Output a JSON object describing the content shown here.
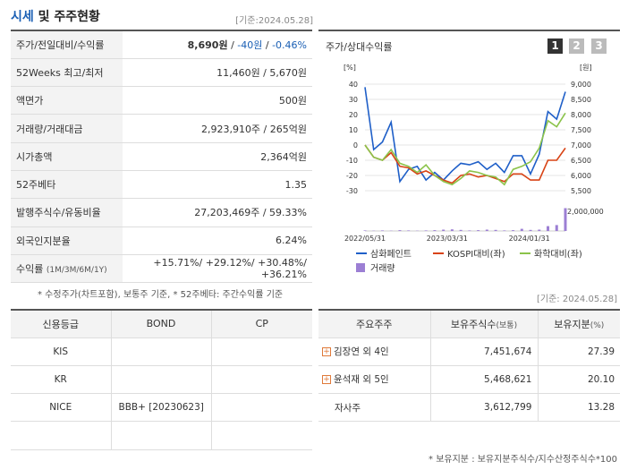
{
  "header": {
    "title_accent": "시세",
    "title_rest": " 및 주주현황",
    "as_of": "[기준:2024.05.28]"
  },
  "summary": {
    "rows": [
      {
        "label": "주가/전일대비/수익률"
      },
      {
        "label": "52Weeks 최고/최저",
        "value": "11,460원 / 5,670원"
      },
      {
        "label": "액면가",
        "value": "500원"
      },
      {
        "label": "거래량/거래대금",
        "value": "2,923,910주 / 265억원"
      },
      {
        "label": "시가총액",
        "value": "2,364억원"
      },
      {
        "label": "52주베타",
        "value": "1.35"
      },
      {
        "label": "발행주식수/유동비율",
        "value": "27,203,469주 / 59.33%"
      },
      {
        "label": "외국인지분율",
        "value": "6.24%"
      },
      {
        "label": "수익률",
        "label_sub": "(1M/3M/6M/1Y)"
      }
    ],
    "price": "8,690원",
    "sep": " / ",
    "change": "-40원",
    "change_pct": "-0.46%",
    "returns": [
      "+15.71%",
      "+29.12%",
      "+30.48%",
      "+36.21%"
    ],
    "note": "* 수정주가(차트포함), 보통주 기준, * 52주베타: 주간수익률 기준"
  },
  "chart": {
    "title": "주가/상대수익률",
    "tabs": [
      "1",
      "2",
      "3"
    ],
    "left_unit": "[%]",
    "right_unit": "[원]",
    "volume_label": "2,000,000",
    "legend": [
      "삼화페인트",
      "KOSPI대비(좌)",
      "화학대비(좌)",
      "거래량"
    ],
    "colors": {
      "stock": "#1f5fc8",
      "kospi": "#d84315",
      "chem": "#8bc34a",
      "volume": "#9c7fd4"
    }
  },
  "chart_data": {
    "type": "line",
    "x_ticks": [
      "2022/05/31",
      "2023/03/31",
      "2024/01/31"
    ],
    "y_left_ticks": [
      40,
      30,
      20,
      10,
      0,
      -10,
      -20,
      -30
    ],
    "y_right_ticks": [
      "9,000",
      "8,500",
      "8,000",
      "7,500",
      "7,000",
      "6,500",
      "6,000",
      "5,500"
    ],
    "ylim_left": [
      -30,
      40
    ],
    "ylim_right": [
      5500,
      9000
    ],
    "series": [
      {
        "name": "삼화페인트",
        "values": [
          38,
          -3,
          2,
          15,
          -24,
          -16,
          -14,
          -23,
          -18,
          -23,
          -17,
          -12,
          -13,
          -11,
          -16,
          -12,
          -18,
          -7,
          -7,
          -19,
          -6,
          22,
          17,
          35
        ]
      },
      {
        "name": "KOSPI대비(좌)",
        "values": [
          0,
          -8,
          -10,
          -5,
          -14,
          -15,
          -19,
          -17,
          -20,
          -23,
          -25,
          -20,
          -19,
          -21,
          -20,
          -22,
          -24,
          -19,
          -19,
          -23,
          -23,
          -10,
          -10,
          -2
        ]
      },
      {
        "name": "화학대비(좌)",
        "values": [
          0,
          -8,
          -10,
          -3,
          -12,
          -14,
          -18,
          -13,
          -20,
          -24,
          -26,
          -22,
          -17,
          -18,
          -20,
          -21,
          -26,
          -16,
          -14,
          -11,
          -2,
          16,
          12,
          21
        ]
      }
    ],
    "volume": [
      0.02,
      0.01,
      0.02,
      0.01,
      0.03,
      0.02,
      0.01,
      0.02,
      0.03,
      0.05,
      0.06,
      0.04,
      0.02,
      0.03,
      0.05,
      0.04,
      0.02,
      0.03,
      0.08,
      0.04,
      0.05,
      0.18,
      0.22,
      0.85
    ]
  },
  "credit": {
    "headers": [
      "신용등급",
      "BOND",
      "CP"
    ],
    "rows": [
      [
        "KIS",
        "",
        ""
      ],
      [
        "KR",
        "",
        ""
      ],
      [
        "NICE",
        "BBB+ [20230623]",
        ""
      ],
      [
        "",
        "",
        ""
      ]
    ]
  },
  "holders": {
    "headers": [
      "주요주주",
      "보유주식수",
      "(보통)",
      "보유지분",
      "(%)"
    ],
    "rows": [
      {
        "name": "김장연 외 4인",
        "shares": "7,451,674",
        "pct": "27.39"
      },
      {
        "name": "윤석재 외 5인",
        "shares": "5,468,621",
        "pct": "20.10"
      },
      {
        "name": "자사주",
        "shares": "3,612,799",
        "pct": "13.28"
      }
    ],
    "as_of": "[기준: 2024.05.28]",
    "note": "* 보유지분 : 보유지분주식수/지수산정주식수*100"
  }
}
